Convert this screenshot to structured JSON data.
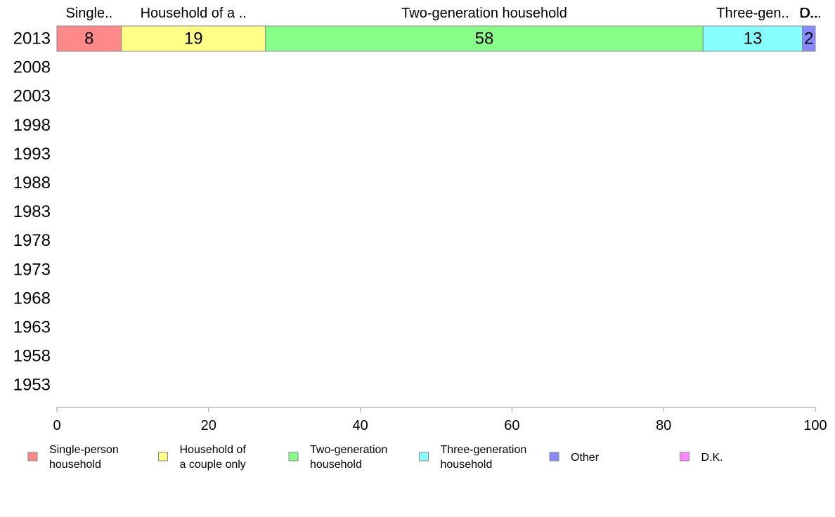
{
  "chart_data": {
    "type": "bar",
    "orientation": "horizontal",
    "stacked": true,
    "categories": [
      "2013",
      "2008",
      "2003",
      "1998",
      "1993",
      "1988",
      "1983",
      "1978",
      "1973",
      "1968",
      "1963",
      "1958",
      "1953"
    ],
    "series": [
      {
        "name": "Single-person household",
        "legend_lines": [
          "Single-person",
          "household"
        ],
        "header_label": "Single..",
        "color": "#ff8888",
        "values": [
          8.5,
          null,
          null,
          null,
          null,
          null,
          null,
          null,
          null,
          null,
          null,
          null,
          null
        ],
        "data_labels": [
          "8",
          "",
          "",
          "",
          "",
          "",
          "",
          "",
          "",
          "",
          "",
          "",
          ""
        ]
      },
      {
        "name": "Household of a couple only",
        "legend_lines": [
          "Household of",
          "a couple only"
        ],
        "header_label": "Household of a ..",
        "color": "#ffff88",
        "values": [
          19,
          null,
          null,
          null,
          null,
          null,
          null,
          null,
          null,
          null,
          null,
          null,
          null
        ],
        "data_labels": [
          "19",
          "",
          "",
          "",
          "",
          "",
          "",
          "",
          "",
          "",
          "",
          "",
          ""
        ]
      },
      {
        "name": "Two-generation household",
        "legend_lines": [
          "Two-generation",
          "household"
        ],
        "header_label": "Two-generation household",
        "color": "#88ff88",
        "values": [
          57.7,
          null,
          null,
          null,
          null,
          null,
          null,
          null,
          null,
          null,
          null,
          null,
          null
        ],
        "data_labels": [
          "58",
          "",
          "",
          "",
          "",
          "",
          "",
          "",
          "",
          "",
          "",
          "",
          ""
        ]
      },
      {
        "name": "Three-generation household",
        "legend_lines": [
          "Three-generation",
          "household"
        ],
        "header_label": "Three-gen..",
        "color": "#88ffff",
        "values": [
          13.1,
          null,
          null,
          null,
          null,
          null,
          null,
          null,
          null,
          null,
          null,
          null,
          null
        ],
        "data_labels": [
          "13",
          "",
          "",
          "",
          "",
          "",
          "",
          "",
          "",
          "",
          "",
          "",
          ""
        ]
      },
      {
        "name": "Other",
        "legend_lines": [
          "Other"
        ],
        "header_label": "O..",
        "color": "#8888ff",
        "values": [
          1.7,
          null,
          null,
          null,
          null,
          null,
          null,
          null,
          null,
          null,
          null,
          null,
          null
        ],
        "data_labels": [
          "2",
          "",
          "",
          "",
          "",
          "",
          "",
          "",
          "",
          "",
          "",
          "",
          ""
        ]
      },
      {
        "name": "D.K.",
        "legend_lines": [
          "D.K."
        ],
        "header_label": "D...",
        "color": "#ff88ff",
        "values": [
          0,
          null,
          null,
          null,
          null,
          null,
          null,
          null,
          null,
          null,
          null,
          null,
          null
        ],
        "data_labels": [
          "",
          "",
          "",
          "",
          "",
          "",
          "",
          "",
          "",
          "",
          "",
          "",
          ""
        ]
      }
    ],
    "xlim": [
      0,
      100
    ],
    "xticks": [
      "0",
      "20",
      "40",
      "60",
      "80",
      "100"
    ],
    "title": "",
    "xlabel": "",
    "ylabel": "",
    "grid": false,
    "legend_position": "bottom"
  }
}
